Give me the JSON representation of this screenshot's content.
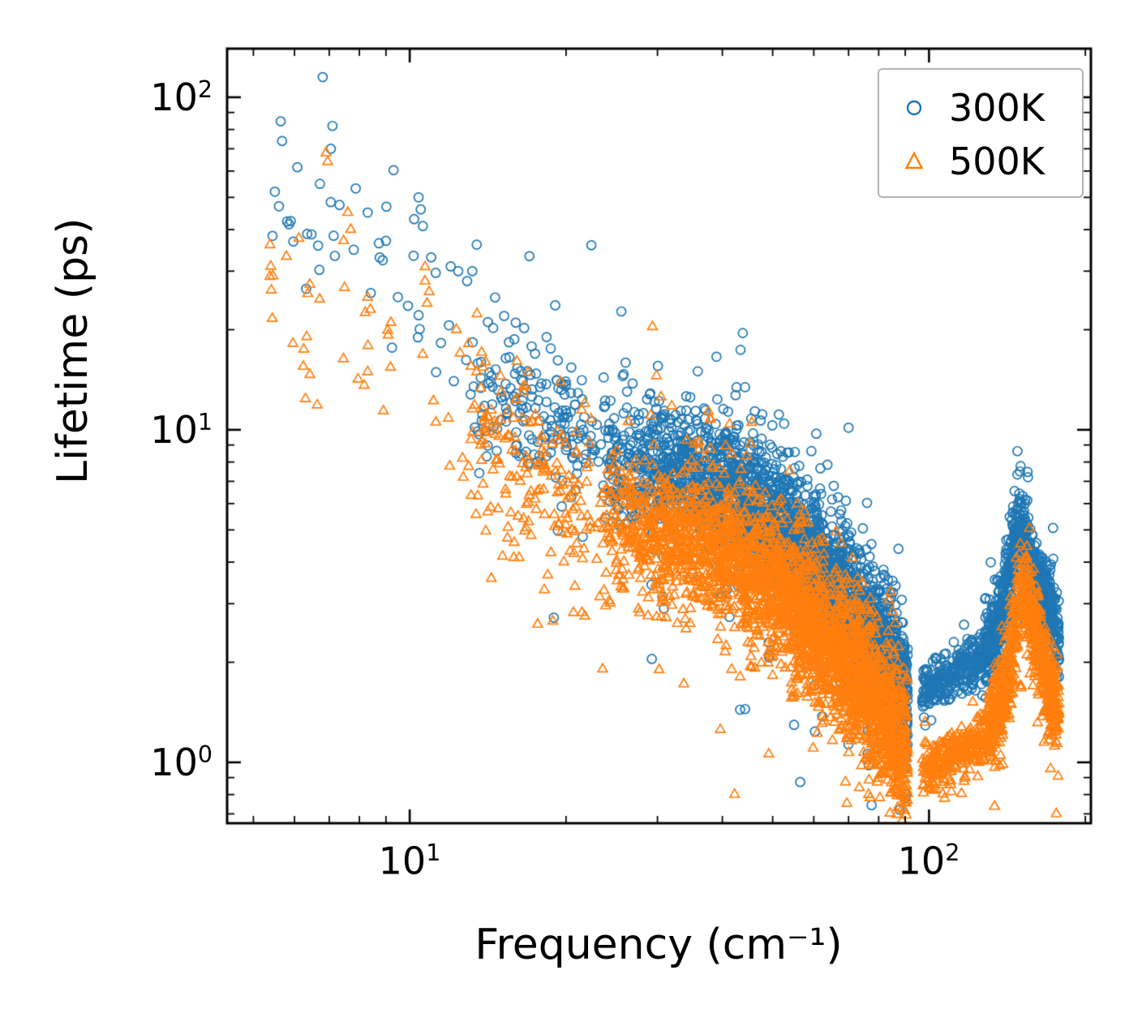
{
  "chart_data": {
    "type": "scatter",
    "title": "",
    "xlabel": "Frequency (cm⁻¹)",
    "ylabel": "Lifetime (ps)",
    "xscale": "log",
    "yscale": "log",
    "xlim": [
      4.45,
      205
    ],
    "ylim": [
      0.656,
      140
    ],
    "grid": false,
    "x_ticks": [
      {
        "base": "10",
        "exp": "1",
        "value": 10
      },
      {
        "base": "10",
        "exp": "2",
        "value": 100
      }
    ],
    "y_ticks": [
      {
        "base": "10",
        "exp": "2",
        "value": 100
      },
      {
        "base": "10",
        "exp": "1",
        "value": 10
      },
      {
        "base": "10",
        "exp": "0",
        "value": 1
      }
    ],
    "legend": {
      "position": "upper right",
      "entries": [
        {
          "label": "300K",
          "marker": "circle",
          "color": "#1f77b4"
        },
        {
          "label": "500K",
          "marker": "triangle",
          "color": "#ff7f0e"
        }
      ]
    },
    "series": [
      {
        "name": "300K",
        "marker": "circle",
        "color": "#1f77b4",
        "description": "Phonon lifetimes at 300 K: power-law decay from ~50 ps at 6 cm⁻¹ to ~1.6 ps near 90 cm⁻¹, gap 91–97 cm⁻¹, then optical branch rising from ~1.6 ps at 97 cm⁻¹ to a peak ~5.2 ps near 150 cm⁻¹, falling to ~2.3 ps at 178 cm⁻¹",
        "segments": [
          {
            "xrange": [
              5.4,
              13
            ],
            "count": 40,
            "sigma": 0.16,
            "xbias": 1.0,
            "trend": [
              [
                5.4,
                48
              ],
              [
                8,
                34
              ],
              [
                10,
                28
              ],
              [
                13,
                16
              ]
            ]
          },
          {
            "xrange": [
              13,
              22
            ],
            "count": 170,
            "sigma": 0.13,
            "xbias": 0.85,
            "trend": [
              [
                13,
                15
              ],
              [
                16,
                12
              ],
              [
                19,
                10.5
              ],
              [
                22,
                9
              ]
            ]
          },
          {
            "xrange": [
              22,
              91
            ],
            "count": 2800,
            "sigma": 0.1,
            "xbias": 0.6,
            "trend": [
              [
                22,
                8.6
              ],
              [
                30,
                7.6
              ],
              [
                40,
                6.6
              ],
              [
                50,
                5.2
              ],
              [
                60,
                4.0
              ],
              [
                70,
                3.0
              ],
              [
                80,
                2.25
              ],
              [
                91,
                1.65
              ]
            ]
          },
          {
            "xrange": [
              97,
              128
            ],
            "count": 280,
            "sigma": 0.035,
            "xbias": 1.0,
            "trend": [
              [
                97,
                1.62
              ],
              [
                108,
                1.78
              ],
              [
                118,
                1.92
              ],
              [
                128,
                2.05
              ]
            ]
          },
          {
            "xrange": [
              128,
              178
            ],
            "count": 750,
            "sigma": 0.06,
            "xbias": 1.0,
            "trend": [
              [
                128,
                2.15
              ],
              [
                137,
                2.6
              ],
              [
                143,
                3.9
              ],
              [
                149,
                5.2
              ],
              [
                154,
                4.6
              ],
              [
                161,
                3.3
              ],
              [
                170,
                3.1
              ],
              [
                178,
                2.3
              ]
            ]
          }
        ],
        "outliers": [
          [
            6.8,
            115
          ],
          [
            7.1,
            82
          ],
          [
            7.05,
            70
          ],
          [
            5.5,
            52
          ],
          [
            5.6,
            47
          ],
          [
            8.3,
            45
          ],
          [
            10.4,
            50
          ],
          [
            10.5,
            46
          ],
          [
            10.2,
            43
          ],
          [
            10.6,
            41
          ],
          [
            9.0,
            37
          ],
          [
            11.0,
            33
          ],
          [
            12.4,
            30
          ],
          [
            13.2,
            30
          ],
          [
            12.9,
            28
          ],
          [
            14.6,
            25
          ],
          [
            15.2,
            22
          ],
          [
            16.0,
            21
          ]
        ]
      },
      {
        "name": "500K",
        "marker": "triangle",
        "color": "#ff7f0e",
        "description": "Phonon lifetimes at 500 K: roughly 0.6× the 300 K values; decay from ~28 ps at 5.5 cm⁻¹ to ~1.0 ps near 90 cm⁻¹, gap 91–97 cm⁻¹, then optical branch from ~0.95 ps rising to a peak ~3.3 ps near 151 cm⁻¹, falling to ~1.4 ps at 178 cm⁻¹",
        "segments": [
          {
            "xrange": [
              5.3,
              13
            ],
            "count": 38,
            "sigma": 0.16,
            "xbias": 1.0,
            "trend": [
              [
                5.3,
                28
              ],
              [
                8,
                20
              ],
              [
                10,
                14
              ],
              [
                13,
                10
              ]
            ]
          },
          {
            "xrange": [
              13,
              22
            ],
            "count": 170,
            "sigma": 0.15,
            "xbias": 0.85,
            "trend": [
              [
                13,
                9.5
              ],
              [
                16,
                7.8
              ],
              [
                19,
                6.6
              ],
              [
                22,
                5.9
              ]
            ]
          },
          {
            "xrange": [
              22,
              91
            ],
            "count": 2800,
            "sigma": 0.11,
            "xbias": 0.6,
            "trend": [
              [
                22,
                5.6
              ],
              [
                30,
                4.9
              ],
              [
                40,
                4.4
              ],
              [
                50,
                3.4
              ],
              [
                60,
                2.6
              ],
              [
                70,
                1.95
              ],
              [
                80,
                1.45
              ],
              [
                91,
                1.02
              ]
            ]
          },
          {
            "xrange": [
              97,
              130
            ],
            "count": 280,
            "sigma": 0.04,
            "xbias": 1.0,
            "trend": [
              [
                97,
                0.95
              ],
              [
                108,
                1.02
              ],
              [
                120,
                1.12
              ],
              [
                130,
                1.22
              ]
            ]
          },
          {
            "xrange": [
              130,
              178
            ],
            "count": 750,
            "sigma": 0.07,
            "xbias": 1.0,
            "trend": [
              [
                130,
                1.28
              ],
              [
                140,
                1.6
              ],
              [
                146,
                2.5
              ],
              [
                151,
                3.3
              ],
              [
                156,
                2.9
              ],
              [
                163,
                2.2
              ],
              [
                170,
                1.7
              ],
              [
                178,
                1.4
              ]
            ]
          }
        ],
        "outliers": [
          [
            6.9,
            68
          ],
          [
            6.95,
            64
          ],
          [
            5.4,
            31
          ],
          [
            5.45,
            29
          ],
          [
            7.6,
            45
          ],
          [
            7.7,
            40
          ],
          [
            8.3,
            25
          ],
          [
            8.4,
            23
          ],
          [
            9.2,
            21
          ],
          [
            10.7,
            28
          ],
          [
            10.9,
            26
          ],
          [
            10.8,
            24
          ],
          [
            12.3,
            20
          ],
          [
            12.5,
            17
          ],
          [
            14.0,
            16
          ],
          [
            15.0,
            13
          ]
        ]
      }
    ]
  }
}
